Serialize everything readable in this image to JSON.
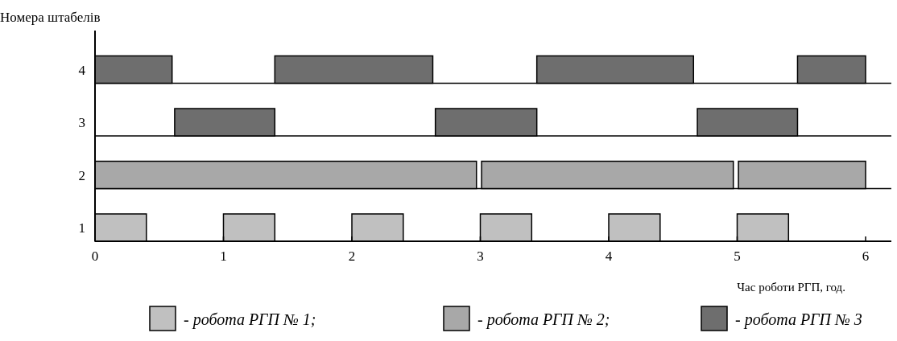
{
  "chart_data": {
    "type": "bar",
    "orientation": "horizontal",
    "ylabel": "Номера штабелів",
    "xlabel": "Час роботи РГП, год.",
    "categories": [
      "4",
      "3",
      "2",
      "1"
    ],
    "xlim": [
      0,
      6.2
    ],
    "xticks": [
      0,
      1,
      2,
      3,
      4,
      5,
      6
    ],
    "grid": "y",
    "legend": "bottom",
    "series": [
      {
        "name": "- робота РГП № 1;",
        "color": "#c0c0c0",
        "values": [
          null,
          null,
          null,
          0.4
        ],
        "base": [
          null,
          null,
          null,
          0
        ]
      },
      {
        "color": "#c0c0c0",
        "values": [
          null,
          null,
          null,
          0.4
        ],
        "base": [
          null,
          null,
          null,
          1
        ]
      },
      {
        "color": "#c0c0c0",
        "values": [
          null,
          null,
          null,
          0.4
        ],
        "base": [
          null,
          null,
          null,
          2
        ]
      },
      {
        "color": "#c0c0c0",
        "values": [
          null,
          null,
          null,
          0.4
        ],
        "base": [
          null,
          null,
          null,
          3
        ]
      },
      {
        "color": "#c0c0c0",
        "values": [
          null,
          null,
          null,
          0.4
        ],
        "base": [
          null,
          null,
          null,
          4
        ]
      },
      {
        "color": "#c0c0c0",
        "values": [
          null,
          null,
          null,
          0.4
        ],
        "base": [
          null,
          null,
          null,
          5
        ]
      },
      {
        "name": "- робота РГП № 2;",
        "color": "#a8a8a8",
        "values": [
          null,
          null,
          2.97,
          null
        ],
        "base": [
          null,
          null,
          0,
          null
        ]
      },
      {
        "color": "#a8a8a8",
        "values": [
          null,
          null,
          1.96,
          null
        ],
        "base": [
          null,
          null,
          3.01,
          null
        ]
      },
      {
        "color": "#a8a8a8",
        "values": [
          null,
          null,
          0.99,
          null
        ],
        "base": [
          null,
          null,
          5.01,
          null
        ]
      },
      {
        "name": "- робота РГП № 3",
        "color": "#6e6e6e",
        "values": [
          0.6,
          0.78,
          null,
          null
        ],
        "base": [
          0,
          0.62,
          null,
          null
        ]
      },
      {
        "color": "#6e6e6e",
        "values": [
          1.23,
          0.79,
          null,
          null
        ],
        "base": [
          1.4,
          2.65,
          null,
          null
        ]
      },
      {
        "color": "#6e6e6e",
        "values": [
          1.22,
          0.78,
          null,
          null
        ],
        "base": [
          3.44,
          4.69,
          null,
          null
        ]
      },
      {
        "color": "#6e6e6e",
        "values": [
          0.53,
          null,
          null,
          null
        ],
        "base": [
          5.47,
          null,
          null,
          null
        ]
      }
    ]
  }
}
